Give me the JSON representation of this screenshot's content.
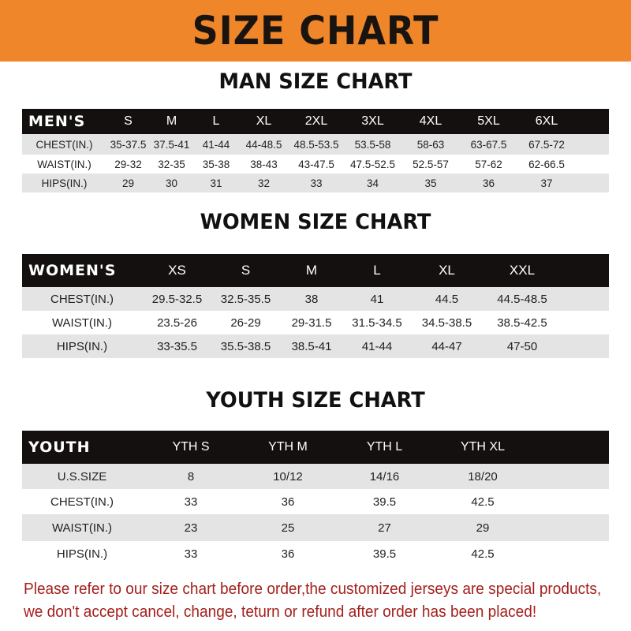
{
  "banner": "SIZE CHART",
  "men": {
    "title": "MAN SIZE CHART",
    "header": [
      "MEN'S",
      "S",
      "M",
      "L",
      "XL",
      "2XL",
      "3XL",
      "4XL",
      "5XL",
      "6XL"
    ],
    "rows": [
      [
        "CHEST(IN.)",
        "35-37.5",
        "37.5-41",
        "41-44",
        "44-48.5",
        "48.5-53.5",
        "53.5-58",
        "58-63",
        "63-67.5",
        "67.5-72"
      ],
      [
        "WAIST(IN.)",
        "29-32",
        "32-35",
        "35-38",
        "38-43",
        "43-47.5",
        "47.5-52.5",
        "52.5-57",
        "57-62",
        "62-66.5"
      ],
      [
        "HIPS(IN.)",
        "29",
        "30",
        "31",
        "32",
        "33",
        "34",
        "35",
        "36",
        "37"
      ]
    ]
  },
  "women": {
    "title": "WOMEN SIZE CHART",
    "header": [
      "WOMEN'S",
      "XS",
      "S",
      "M",
      "L",
      "XL",
      "XXL"
    ],
    "rows": [
      [
        "CHEST(IN.)",
        "29.5-32.5",
        "32.5-35.5",
        "38",
        "41",
        "44.5",
        "44.5-48.5"
      ],
      [
        "WAIST(IN.)",
        "23.5-26",
        "26-29",
        "29-31.5",
        "31.5-34.5",
        "34.5-38.5",
        "38.5-42.5"
      ],
      [
        "HIPS(IN.)",
        "33-35.5",
        "35.5-38.5",
        "38.5-41",
        "41-44",
        "44-47",
        "47-50"
      ]
    ]
  },
  "youth": {
    "title": "YOUTH SIZE CHART",
    "header": [
      "YOUTH",
      "YTH S",
      "YTH M",
      "YTH L",
      "YTH XL"
    ],
    "rows": [
      [
        "U.S.SIZE",
        "8",
        "10/12",
        "14/16",
        "18/20"
      ],
      [
        "CHEST(IN.)",
        "33",
        "36",
        "39.5",
        "42.5"
      ],
      [
        "WAIST(IN.)",
        "23",
        "25",
        "27",
        "29"
      ],
      [
        "HIPS(IN.)",
        "33",
        "36",
        "39.5",
        "42.5"
      ]
    ]
  },
  "footer": {
    "line1": "Please refer to our size chart before order,the customized jerseys are special products,",
    "line2": "we don't accept cancel, change, teturn or refund after order has been placed!"
  },
  "colors": {
    "banner": "#f0862a",
    "header_bg": "#141010",
    "stripe": "#e4e4e4",
    "notice": "#a3201c"
  }
}
